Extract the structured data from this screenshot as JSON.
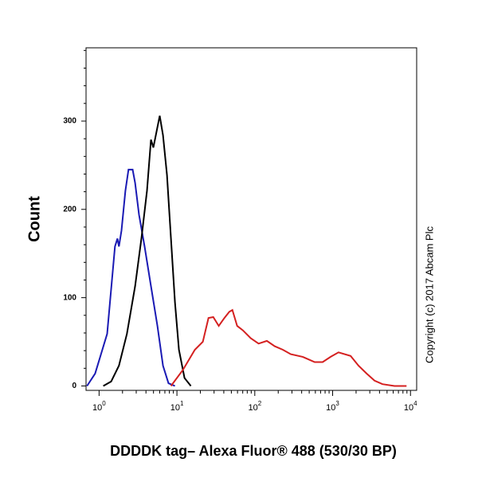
{
  "chart_data": {
    "type": "line",
    "x_label": "DDDDK tag– Alexa Fluor® 488 (530/30 BP)",
    "y_label": "Count",
    "annotation": "Copyright (c) 2017 Abcam Plc",
    "x_log": true,
    "xlim": [
      0.68,
      12000
    ],
    "ylim": [
      -5,
      383
    ],
    "xticks": [
      {
        "value": 1,
        "label": "10^0"
      },
      {
        "value": 10,
        "label": "10^1"
      },
      {
        "value": 100,
        "label": "10^2"
      },
      {
        "value": 1000,
        "label": "10^3"
      },
      {
        "value": 10000,
        "label": "10^4"
      }
    ],
    "yticks": [
      0,
      100,
      200,
      300
    ],
    "series": [
      {
        "color": "#1a1ab4",
        "x": [
          0.7,
          0.89,
          1.27,
          1.6,
          1.72,
          1.8,
          1.94,
          2.18,
          2.39,
          2.7,
          2.9,
          3.26,
          3.84,
          4.64,
          5.61,
          6.62,
          7.8,
          9.42
        ],
        "values": [
          0,
          14,
          59,
          158,
          167,
          158,
          176,
          221,
          245,
          245,
          230,
          194,
          158,
          113,
          68,
          23,
          3,
          0
        ]
      },
      {
        "color": "#000000",
        "x": [
          1.13,
          1.43,
          1.8,
          2.28,
          2.9,
          3.5,
          4.12,
          4.64,
          4.98,
          5.61,
          6.01,
          6.62,
          7.45,
          8.38,
          9.42,
          10.6,
          12.5,
          15.1
        ],
        "values": [
          0,
          5,
          23,
          59,
          113,
          167,
          221,
          279,
          270,
          293,
          306,
          284,
          239,
          167,
          95,
          41,
          9,
          0
        ]
      },
      {
        "color": "#d42020",
        "x": [
          8.38,
          11.9,
          17.0,
          21.5,
          25.4,
          29.3,
          34.5,
          40.7,
          47.0,
          51.6,
          59.4,
          70.2,
          88.9,
          112,
          143,
          180,
          229,
          290,
          412,
          588,
          745,
          942,
          1190,
          1700,
          2150,
          2730,
          3450,
          4370,
          6240,
          8890
        ],
        "values": [
          0,
          18,
          41,
          50,
          77,
          78,
          68,
          77,
          84,
          86,
          68,
          63,
          54,
          48,
          51,
          45,
          41,
          36,
          33,
          27,
          27,
          33,
          38,
          34,
          23,
          14,
          6,
          2,
          0,
          0
        ]
      }
    ]
  }
}
